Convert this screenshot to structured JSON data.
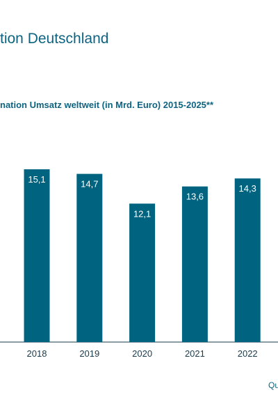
{
  "header": {
    "title": "tion Deutschland",
    "subtitle": "nation Umsatz weltweit (in Mrd. Euro) 2015-2025**",
    "source": "Qu"
  },
  "colors": {
    "bar": "#00637f",
    "text_accent": "#0e6381",
    "axis": "#1a3a4a"
  },
  "chart_data": {
    "type": "bar",
    "title": "nation Umsatz weltweit (in Mrd. Euro) 2015-2025**",
    "categories": [
      "2018",
      "2019",
      "2020",
      "2021",
      "2022"
    ],
    "values": [
      15.1,
      14.7,
      12.1,
      13.6,
      14.3
    ],
    "value_labels": [
      "15,1",
      "14,7",
      "12,1",
      "13,6",
      "14,3"
    ],
    "ylim": [
      0,
      16.5
    ],
    "grid": false,
    "legend": "none"
  }
}
